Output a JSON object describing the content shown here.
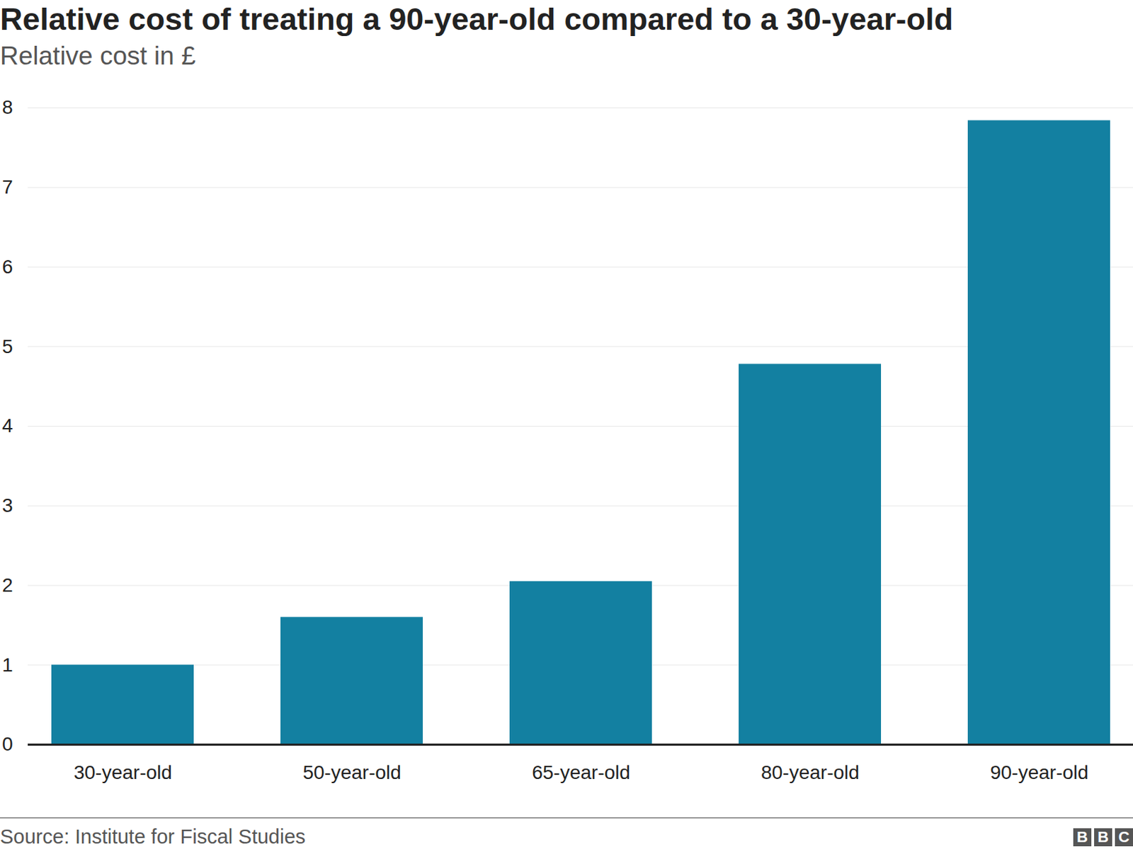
{
  "chart_data": {
    "type": "bar",
    "title": "Relative cost of treating a 90-year-old compared to a 30-year-old",
    "subtitle": "Relative cost in £",
    "categories": [
      "30-year-old",
      "50-year-old",
      "65-year-old",
      "80-year-old",
      "90-year-old"
    ],
    "values": [
      1,
      1.6,
      2.05,
      4.78,
      7.84
    ],
    "color": "#1380a1",
    "ylim": [
      0,
      8
    ],
    "yticks": [
      0,
      1,
      2,
      3,
      4,
      5,
      6,
      7,
      8
    ],
    "grid": true,
    "source": "Source: Institute for Fiscal Studies",
    "logo": "BBC"
  }
}
